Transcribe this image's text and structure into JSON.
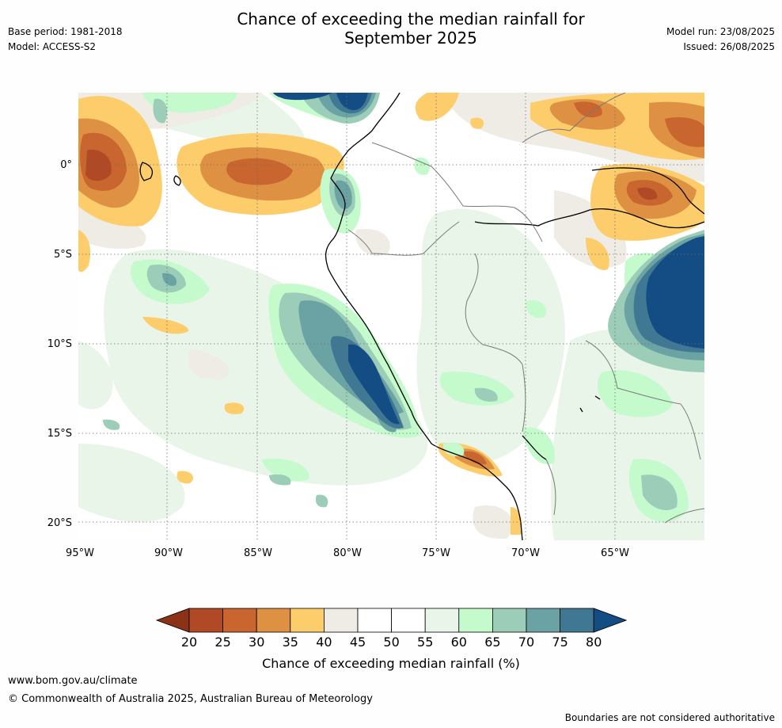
{
  "header": {
    "title_line1": "Chance of exceeding the median rainfall for",
    "title_line2": "September 2025",
    "base_period": "Base period: 1981-2018",
    "model": "Model: ACCESS-S2",
    "model_run": "Model run: 23/08/2025",
    "issued": "Issued: 26/08/2025"
  },
  "map": {
    "lon_labels": [
      "95°W",
      "90°W",
      "85°W",
      "80°W",
      "75°W",
      "70°W",
      "65°W"
    ],
    "lat_labels": [
      "0°",
      "5°S",
      "10°S",
      "15°S",
      "20°S"
    ]
  },
  "colorbar": {
    "ticks": [
      "20",
      "25",
      "30",
      "35",
      "40",
      "45",
      "50",
      "55",
      "60",
      "65",
      "70",
      "75",
      "80"
    ],
    "label": "Chance of exceeding median rainfall (%)",
    "colors": {
      "under": "#8b3219",
      "bins": [
        "#b04a26",
        "#c9652f",
        "#de9143",
        "#fdcd6b",
        "#efece6",
        "#ffffff",
        "#ffffff",
        "#e9f5e9",
        "#c5fbcc",
        "#9ccdb8",
        "#6ba3a5",
        "#407894"
      ],
      "over": "#144c84"
    }
  },
  "footer": {
    "url": "www.bom.gov.au/climate",
    "copyright": "© Commonwealth of Australia 2025, Australian Bureau of Meteorology",
    "disclaimer": "Boundaries are not considered authoritative"
  }
}
